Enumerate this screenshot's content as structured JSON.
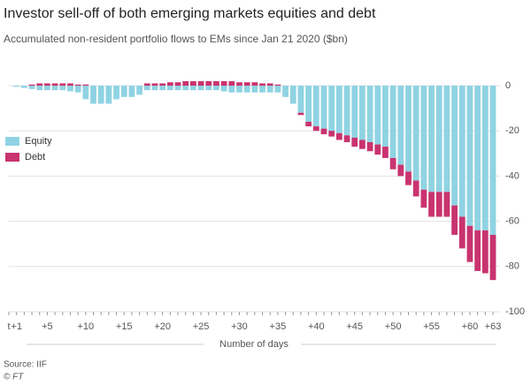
{
  "chart_data": {
    "type": "stacked_bar",
    "title": "Investor sell-off of both emerging markets equities and debt",
    "subtitle": "Accumulated non-resident portfolio flows to EMs since Jan 21 2020 ($bn)",
    "x_label": "Number of days",
    "source": "Source: IIF",
    "credit": "© FT",
    "categories": [
      "t",
      "+1",
      null,
      null,
      null,
      "+5",
      null,
      null,
      null,
      null,
      "+10",
      null,
      null,
      null,
      null,
      "+15",
      null,
      null,
      null,
      null,
      "+20",
      null,
      null,
      null,
      null,
      "+25",
      null,
      null,
      null,
      null,
      "+30",
      null,
      null,
      null,
      null,
      "+35",
      null,
      null,
      null,
      null,
      "+40",
      null,
      null,
      null,
      null,
      "+45",
      null,
      null,
      null,
      null,
      "+50",
      null,
      null,
      null,
      null,
      "+55",
      null,
      null,
      null,
      null,
      "+60",
      null,
      null,
      "+63"
    ],
    "series": [
      {
        "name": "Equity",
        "color": "#8fd3e3",
        "values": [
          0,
          -0.5,
          -1,
          -1.5,
          -2,
          -2,
          -2,
          -2,
          -2.5,
          -3,
          -6,
          -8,
          -8,
          -8,
          -6,
          -5,
          -5,
          -4,
          -2,
          -2,
          -2,
          -2,
          -2,
          -2,
          -2,
          -2,
          -2,
          -2,
          -2.5,
          -3,
          -3,
          -3,
          -3,
          -3,
          -3,
          -3,
          -5,
          -8,
          -12,
          -16,
          -18,
          -19,
          -20,
          -21,
          -22,
          -23,
          -24,
          -25,
          -26,
          -27,
          -32,
          -35,
          -38,
          -42,
          -46,
          -47,
          -47,
          -47,
          -53,
          -58,
          -62,
          -64,
          -64,
          -66
        ]
      },
      {
        "name": "Debt",
        "color": "#c9336f",
        "values": [
          0,
          0,
          0,
          0.5,
          1,
          1,
          1,
          1,
          1,
          0.5,
          0.5,
          0,
          0,
          0,
          0,
          0,
          0,
          0,
          1,
          1,
          1,
          1.5,
          1.5,
          2,
          2,
          2,
          2,
          2,
          2,
          2,
          1.5,
          1.5,
          1.5,
          1,
          1,
          0.5,
          0,
          0,
          -1,
          -2,
          -2,
          -2.5,
          -2.5,
          -3,
          -3,
          -4,
          -4,
          -4,
          -4.5,
          -5,
          -5,
          -5,
          -6,
          -7,
          -8,
          -11,
          -11,
          -11,
          -13,
          -14,
          -16,
          -18,
          -19,
          -20
        ]
      }
    ],
    "ylim": [
      -100,
      0
    ],
    "yticks": [
      0,
      -20,
      -40,
      -60,
      -80,
      -100
    ],
    "grid": true,
    "legend": "upper-left"
  }
}
